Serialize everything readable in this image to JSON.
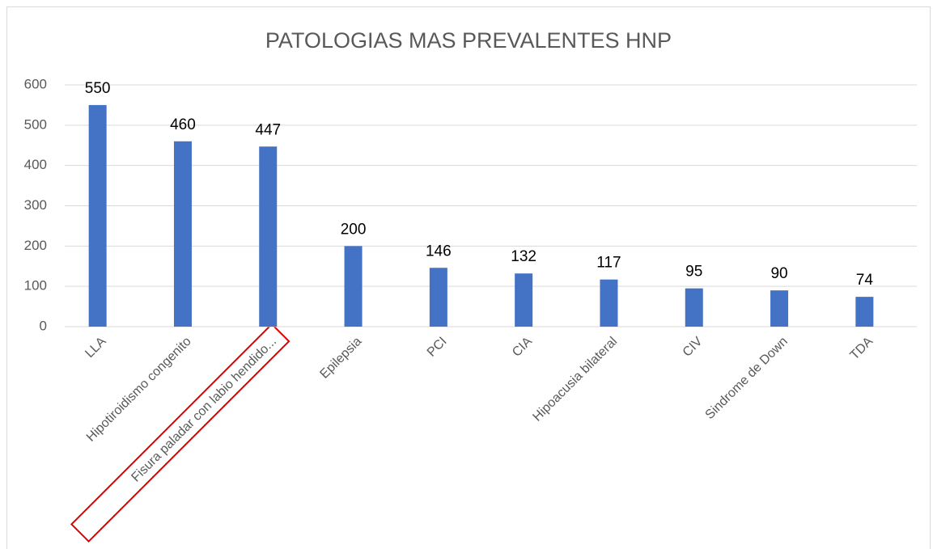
{
  "chart_data": {
    "type": "bar",
    "title": "PATOLOGIAS MAS PREVALENTES HNP",
    "categories": [
      "LLA",
      "Hipotiroidismo congenito",
      "Fisura paladar con labio hendido...",
      "Epilepsia",
      "PCI",
      "CIA",
      "Hipoacusia bilateral",
      "CIV",
      "Sindrome de Down",
      "TDA"
    ],
    "values": [
      550,
      460,
      447,
      200,
      146,
      132,
      117,
      95,
      90,
      74
    ],
    "color": "#4472c4",
    "ylim": [
      0,
      600
    ],
    "yticks": [
      0,
      100,
      200,
      300,
      400,
      500,
      600
    ],
    "grid": true
  }
}
